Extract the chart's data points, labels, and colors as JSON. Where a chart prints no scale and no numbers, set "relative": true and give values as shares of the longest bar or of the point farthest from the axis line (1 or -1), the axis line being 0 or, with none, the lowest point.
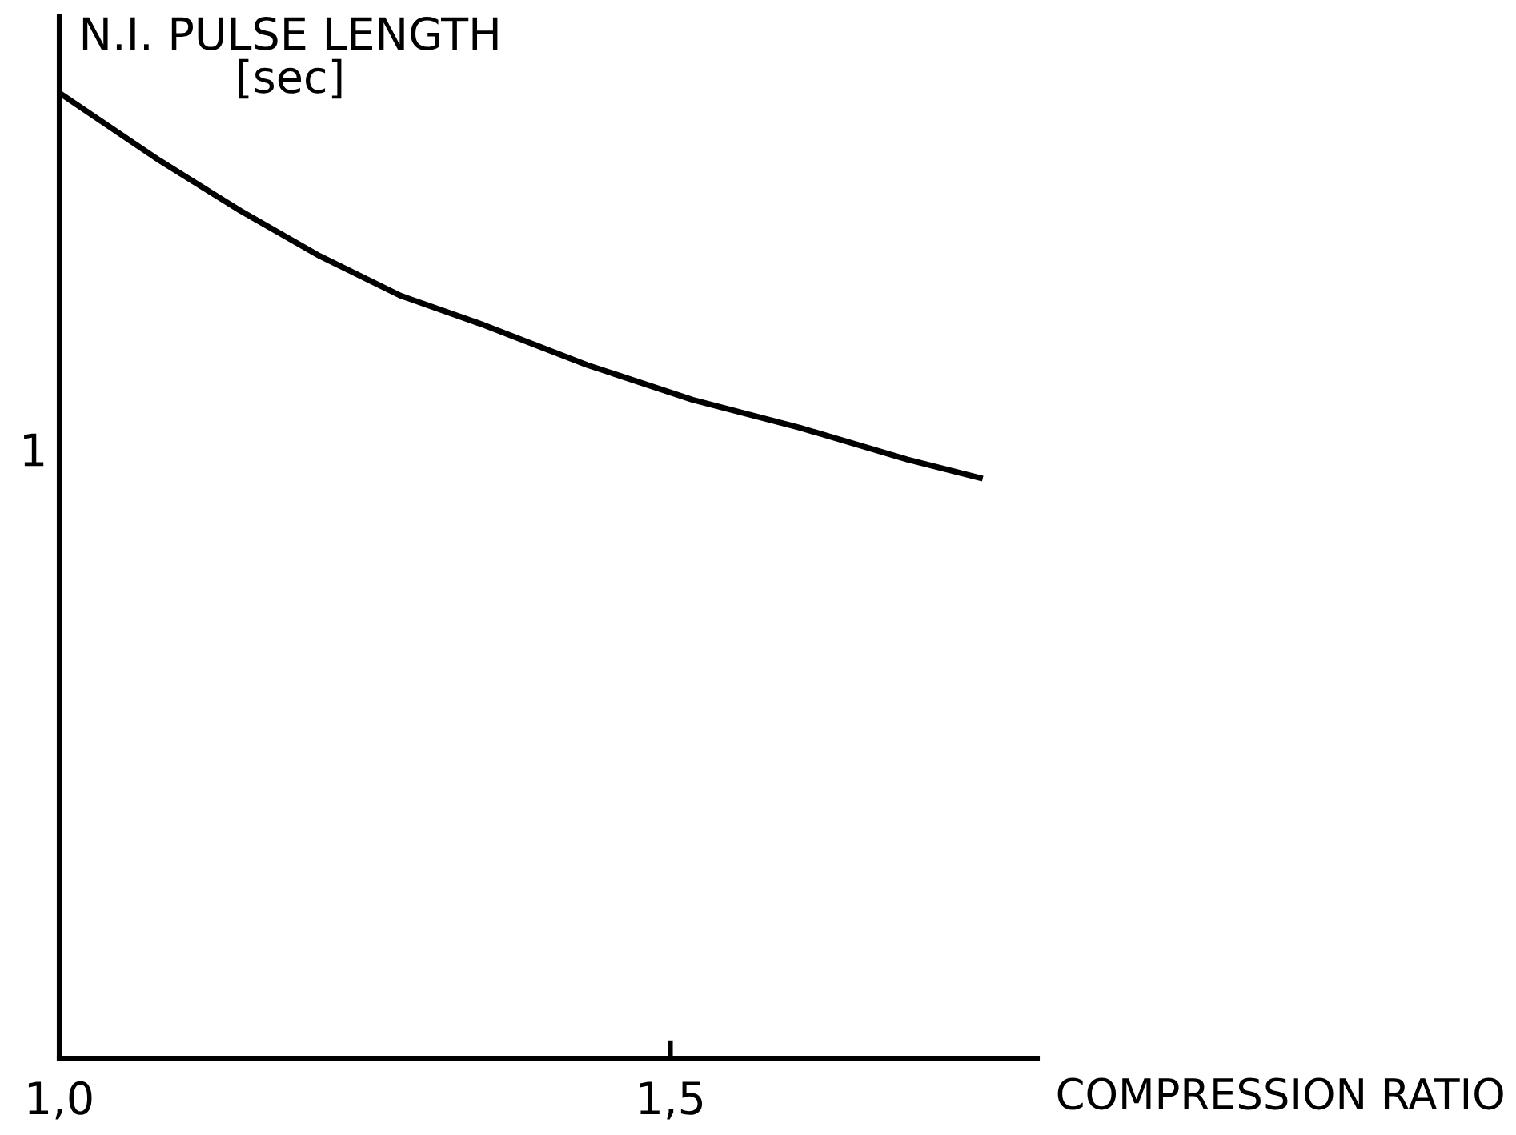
{
  "chart_data": {
    "type": "line",
    "ylabel": "N.I. PULSE LENGTH\n[sec]",
    "xlabel": "COMPRESSION RATIO",
    "annotations": [
      "1"
    ],
    "relative": true,
    "series": [
      {
        "color": "#000000",
        "x": [
          1.0,
          1.082,
          1.148,
          1.213,
          1.279,
          1.344,
          1.432,
          1.518,
          1.606,
          1.694,
          1.753
        ],
        "values": [
          1,
          0.93,
          0.878,
          0.831,
          0.79,
          0.761,
          0.718,
          0.682,
          0.653,
          0.62,
          0.601
        ]
      }
    ],
    "xlim": [
      1.0,
      1.8
    ],
    "xticks": [
      {
        "value": 1.0,
        "label": "1,0"
      },
      {
        "value": 1.5,
        "label": "1,5"
      }
    ],
    "marker": "none",
    "line_style": "solid"
  }
}
